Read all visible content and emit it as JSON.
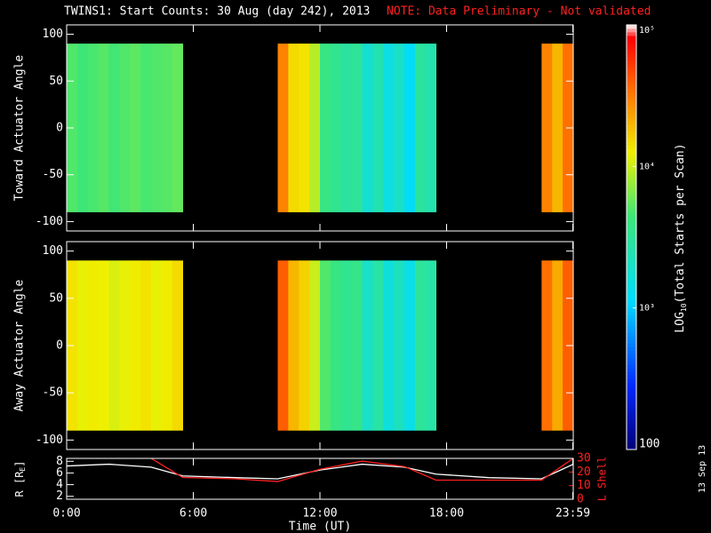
{
  "title": "TWINS1: Start Counts: 30 Aug (day 242), 2013",
  "note": "NOTE: Data Preliminary - Not validated",
  "date_stamp": "13 Sep 13",
  "colorbar": {
    "label": {
      "prefix": "LOG",
      "sub": "10",
      "rest": "(Total Starts per Scan)"
    },
    "lim": [
      100,
      100000
    ],
    "log": true,
    "colormap": "rainbow",
    "ticks": [
      100,
      {
        "value": 1000,
        "label": "10³"
      },
      {
        "value": 10000,
        "label": "10⁴"
      },
      {
        "value": 100000,
        "label": "10⁵"
      }
    ]
  },
  "chart_data": [
    {
      "type": "heatmap",
      "ylabel": "Toward Actuator Angle",
      "xlim": [
        0,
        24
      ],
      "ylim": [
        -110,
        110
      ],
      "yticks": [
        -100,
        -50,
        0,
        50,
        100
      ],
      "ybins": [
        -90,
        90
      ],
      "xbins": [
        0,
        0.5,
        1,
        1.5,
        2,
        2.5,
        3,
        3.5,
        4,
        4.5,
        5,
        5.5,
        6,
        6.5,
        7,
        7.5,
        8,
        8.5,
        9,
        9.5,
        10,
        10.5,
        11,
        11.5,
        12,
        12.5,
        13,
        13.5,
        14,
        14.5,
        15,
        15.5,
        16,
        16.5,
        17,
        17.5,
        18,
        18.5,
        19,
        19.5,
        20,
        20.5,
        21,
        21.5,
        22,
        22.5,
        23,
        23.5,
        24
      ],
      "values": [
        5000,
        4500,
        4800,
        5200,
        4600,
        5000,
        5400,
        4800,
        5000,
        5200,
        5600,
        null,
        null,
        null,
        null,
        null,
        null,
        null,
        null,
        null,
        30000,
        15000,
        14000,
        9000,
        4000,
        3500,
        3000,
        3200,
        1800,
        2500,
        1500,
        2000,
        1200,
        3000,
        2600,
        null,
        null,
        null,
        null,
        null,
        null,
        null,
        null,
        null,
        null,
        30000,
        20000,
        35000
      ]
    },
    {
      "type": "heatmap",
      "ylabel": "Away Actuator Angle",
      "xlim": [
        0,
        24
      ],
      "ylim": [
        -110,
        110
      ],
      "yticks": [
        -100,
        -50,
        0,
        50,
        100
      ],
      "ybins": [
        -90,
        90
      ],
      "xbins": [
        0,
        0.5,
        1,
        1.5,
        2,
        2.5,
        3,
        3.5,
        4,
        4.5,
        5,
        5.5,
        6,
        6.5,
        7,
        7.5,
        8,
        8.5,
        9,
        9.5,
        10,
        10.5,
        11,
        11.5,
        12,
        12.5,
        13,
        13.5,
        14,
        14.5,
        15,
        15.5,
        16,
        16.5,
        17,
        17.5,
        18,
        18.5,
        19,
        19.5,
        20,
        20.5,
        21,
        21.5,
        22,
        22.5,
        23,
        23.5,
        24
      ],
      "values": [
        14000,
        12000,
        13000,
        12500,
        11000,
        12000,
        13000,
        14000,
        12000,
        13000,
        15000,
        null,
        null,
        null,
        null,
        null,
        null,
        null,
        null,
        null,
        40000,
        20000,
        16000,
        10000,
        5000,
        4000,
        3500,
        3800,
        2000,
        2800,
        1600,
        2200,
        1400,
        3200,
        2800,
        null,
        null,
        null,
        null,
        null,
        null,
        null,
        null,
        null,
        null,
        35000,
        22000,
        40000
      ]
    },
    {
      "type": "line",
      "xlabel": "Time (UT)",
      "ylabel": {
        "prefix": "R [R",
        "sub": "E",
        "rest": "]"
      },
      "y2label": "L Shell",
      "x": [
        0,
        2,
        4,
        5.5,
        8,
        10,
        12,
        14,
        16,
        17.5,
        20,
        22.5,
        24
      ],
      "xlim": [
        0,
        24
      ],
      "xticks": [
        {
          "value": 0,
          "label": "0:00"
        },
        {
          "value": 6,
          "label": "6:00"
        },
        {
          "value": 12,
          "label": "12:00"
        },
        {
          "value": 18,
          "label": "18:00"
        },
        {
          "value": 23.98,
          "label": "23:59"
        }
      ],
      "ylim": [
        1.5,
        8.5
      ],
      "yticks": [
        2,
        4,
        6,
        8
      ],
      "y2lim": [
        0,
        30
      ],
      "y2ticks": [
        0,
        10,
        20,
        30
      ],
      "series": [
        {
          "color": "#ffffff",
          "values": [
            7.2,
            7.5,
            7,
            5.5,
            5.2,
            5,
            6.5,
            7.5,
            7,
            5.8,
            5.2,
            5,
            7.5
          ]
        },
        {
          "color": "#ff2020",
          "axis": "y2",
          "values": [
            null,
            null,
            30,
            16,
            15,
            13,
            22,
            28,
            24,
            14,
            14,
            14,
            30
          ]
        }
      ]
    }
  ]
}
